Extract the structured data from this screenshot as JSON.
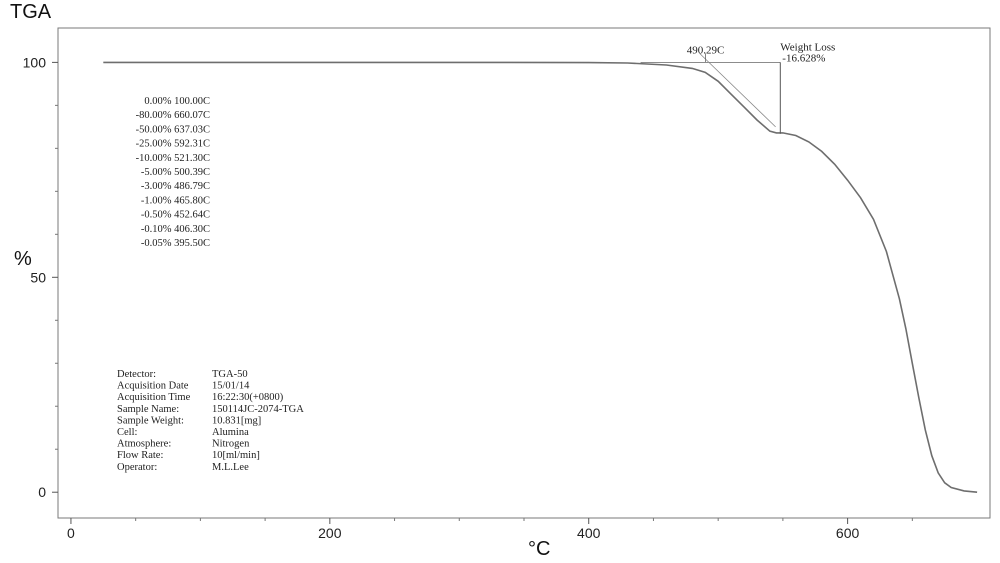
{
  "chart_data": {
    "type": "line",
    "title": "TGA",
    "xlabel": "°C",
    "ylabel": "%",
    "xlim": [
      -10,
      710
    ],
    "ylim": [
      -6,
      108
    ],
    "x_ticks": [
      0,
      200,
      400,
      600
    ],
    "y_ticks": [
      0,
      50,
      100
    ],
    "x_tick_labels": [
      "0",
      "200",
      "400",
      "600"
    ],
    "y_tick_labels": [
      "0",
      "50",
      "100"
    ],
    "grid": false,
    "series": [
      {
        "color": "#6e6e6e",
        "x": [
          25,
          100,
          200,
          300,
          400,
          430,
          460,
          480,
          490,
          500,
          510,
          520,
          530,
          540,
          545,
          550,
          560,
          570,
          580,
          590,
          600,
          610,
          620,
          630,
          640,
          645,
          650,
          655,
          660,
          665,
          670,
          675,
          680,
          690,
          700
        ],
        "y": [
          100,
          100,
          100,
          99.99,
          99.95,
          99.85,
          99.4,
          98.6,
          97.7,
          95.6,
          92.6,
          89.6,
          86.6,
          84,
          83.6,
          83.6,
          83,
          81.5,
          79.3,
          76.3,
          72.6,
          68.5,
          63.5,
          56,
          45,
          38,
          30,
          22,
          14.5,
          8.5,
          4.5,
          2.2,
          1.1,
          0.3,
          0
        ]
      }
    ],
    "onset_marker": {
      "x": 490.29,
      "y": 100,
      "label": "490.29C"
    },
    "weight_loss_marker": {
      "x": 548,
      "y_top": 100,
      "y_bottom": 83.4,
      "title": "Weight Loss",
      "value": "-16.628%"
    },
    "loss_table": [
      "0.00% 100.00C",
      "-80.00% 660.07C",
      "-50.00% 637.03C",
      "-25.00% 592.31C",
      "-10.00% 521.30C",
      "-5.00% 500.39C",
      "-3.00% 486.79C",
      "-1.00% 465.80C",
      "-0.50% 452.64C",
      "-0.10% 406.30C",
      "-0.05% 395.50C"
    ],
    "info_panel": [
      {
        "label": "Detector:",
        "value": "TGA-50"
      },
      {
        "label": "Acquisition Date",
        "value": "15/01/14"
      },
      {
        "label": "Acquisition Time",
        "value": "16:22:30(+0800)"
      },
      {
        "label": "Sample Name:",
        "value": "150114JC-2074-TGA"
      },
      {
        "label": "Sample Weight:",
        "value": "10.831[mg]"
      },
      {
        "label": "Cell:",
        "value": "Alumina"
      },
      {
        "label": "Atmosphere:",
        "value": "Nitrogen"
      },
      {
        "label": "Flow Rate:",
        "value": "10[ml/min]"
      },
      {
        "label": "Operator:",
        "value": "M.L.Lee"
      }
    ]
  }
}
